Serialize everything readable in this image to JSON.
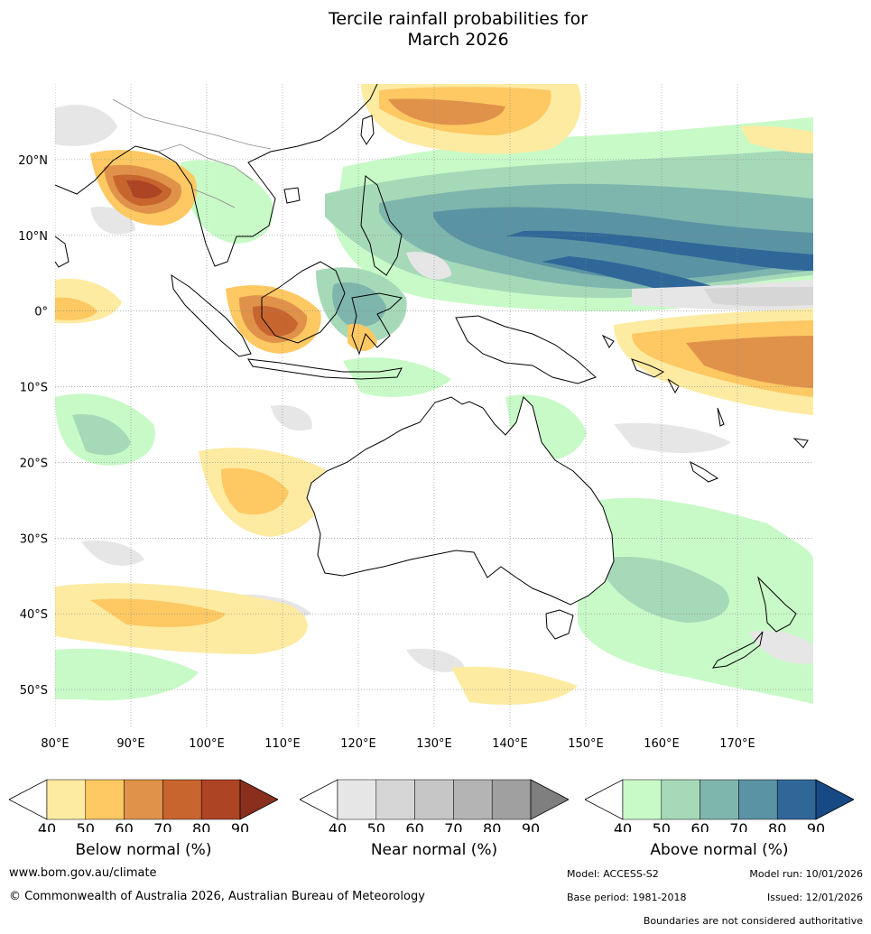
{
  "title": {
    "line1": "Tercile rainfall probabilities for",
    "line2": "March 2026"
  },
  "map": {
    "lon_ticks": [
      "80°E",
      "90°E",
      "100°E",
      "110°E",
      "120°E",
      "130°E",
      "140°E",
      "150°E",
      "160°E",
      "170°E"
    ],
    "lat_ticks": [
      "20°N",
      "10°N",
      "0°",
      "10°S",
      "20°S",
      "30°S",
      "40°S",
      "50°S"
    ],
    "extent": {
      "lon": [
        80,
        180
      ],
      "lat": [
        -55,
        30
      ]
    },
    "gridlines": true
  },
  "legends": [
    {
      "label": "Below normal (%)",
      "ticks": [
        "40",
        "50",
        "60",
        "70",
        "80",
        "90"
      ],
      "colors": [
        "#feeba2",
        "#fec863",
        "#e0924a",
        "#c8652f",
        "#ad4423",
        "#8a2f1e"
      ]
    },
    {
      "label": "Near normal (%)",
      "ticks": [
        "40",
        "50",
        "60",
        "70",
        "80",
        "90"
      ],
      "colors": [
        "#e6e6e6",
        "#d6d6d6",
        "#c6c6c6",
        "#b4b4b4",
        "#a0a0a0",
        "#7f7f7f"
      ]
    },
    {
      "label": "Above normal (%)",
      "ticks": [
        "40",
        "50",
        "60",
        "70",
        "80",
        "90"
      ],
      "colors": [
        "#c8fac8",
        "#a6d9b8",
        "#7eb5ad",
        "#5a93a3",
        "#2f6799",
        "#174a85"
      ]
    }
  ],
  "footer": {
    "website": "www.bom.gov.au/climate",
    "copyright": "© Commonwealth of Australia 2026, Australian Bureau of Meteorology",
    "model": "Model: ACCESS-S2",
    "model_run": "Model run: 10/01/2026",
    "base_period": "Base period: 1981-2018",
    "issued": "Issued: 12/01/2026",
    "disclaimer": "Boundaries are not considered authoritative"
  }
}
